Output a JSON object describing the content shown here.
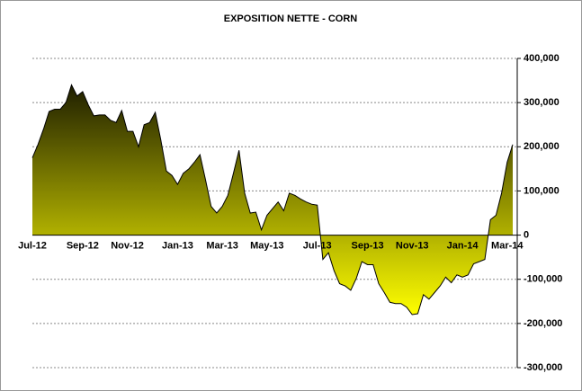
{
  "chart_data": {
    "type": "area",
    "title": "EXPOSITION NETTE - CORN",
    "categories": [
      "Jul-12",
      null,
      null,
      null,
      null,
      null,
      null,
      null,
      null,
      "Sep-12",
      null,
      null,
      null,
      null,
      null,
      null,
      null,
      "Nov-12",
      null,
      null,
      null,
      null,
      null,
      null,
      null,
      null,
      "Jan-13",
      null,
      null,
      null,
      null,
      null,
      null,
      null,
      "Mar-13",
      null,
      null,
      null,
      null,
      null,
      null,
      null,
      "May-13",
      null,
      null,
      null,
      null,
      null,
      null,
      null,
      null,
      "Jul-13",
      null,
      null,
      null,
      null,
      null,
      null,
      null,
      null,
      "Sep-13",
      null,
      null,
      null,
      null,
      null,
      null,
      null,
      "Nov-13",
      null,
      null,
      null,
      null,
      null,
      null,
      null,
      null,
      "Jan-14",
      null,
      null,
      null,
      null,
      null,
      null,
      null,
      "Mar-14",
      null
    ],
    "values": [
      175000,
      205000,
      240000,
      280000,
      285000,
      285000,
      300000,
      340000,
      315000,
      325000,
      295000,
      270000,
      272000,
      272000,
      260000,
      255000,
      282000,
      235000,
      235000,
      200000,
      250000,
      255000,
      278000,
      215000,
      145000,
      135000,
      115000,
      140000,
      150000,
      165000,
      182000,
      125000,
      65000,
      50000,
      65000,
      90000,
      140000,
      192000,
      95000,
      50000,
      52000,
      12000,
      45000,
      60000,
      75000,
      55000,
      95000,
      90000,
      82000,
      75000,
      70000,
      68000,
      -55000,
      -40000,
      -80000,
      -110000,
      -115000,
      -125000,
      -98000,
      -60000,
      -67000,
      -67000,
      -110000,
      -130000,
      -152000,
      -155000,
      -155000,
      -163000,
      -180000,
      -178000,
      -135000,
      -145000,
      -130000,
      -115000,
      -95000,
      -108000,
      -90000,
      -95000,
      -90000,
      -65000,
      -60000,
      -55000,
      35000,
      45000,
      95000,
      165000,
      205000
    ],
    "fill_gradient": [
      "#1a1a00",
      "#ffff00"
    ],
    "ylim": [
      -300000,
      400000
    ],
    "yticks": [
      {
        "value": -300000,
        "label": "-300,000"
      },
      {
        "value": -200000,
        "label": "-200,000"
      },
      {
        "value": -100000,
        "label": "-100,000"
      },
      0,
      {
        "value": 100000,
        "label": "100,000"
      },
      {
        "value": 200000,
        "label": "200,000"
      },
      {
        "value": 300000,
        "label": "300,000"
      },
      {
        "value": 400000,
        "label": "400,000"
      }
    ],
    "grid": true,
    "y_axis_side": "right"
  }
}
